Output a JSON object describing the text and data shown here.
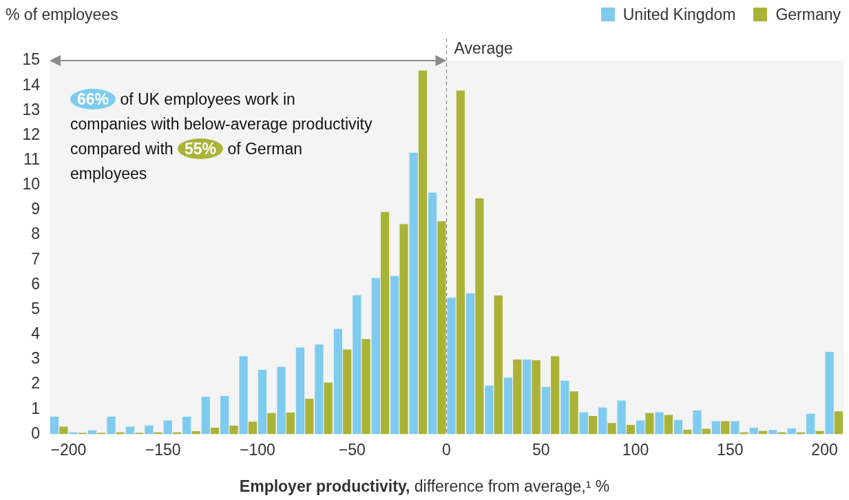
{
  "chart_data": {
    "type": "bar",
    "xlabel": "Employer productivity, difference from average,¹ %",
    "ylabel": "% of employees",
    "x": [
      -205,
      -195,
      -185,
      -175,
      -165,
      -155,
      -145,
      -135,
      -125,
      -115,
      -105,
      -95,
      -85,
      -75,
      -65,
      -55,
      -45,
      -35,
      -25,
      -15,
      -5,
      5,
      15,
      25,
      35,
      45,
      55,
      65,
      75,
      85,
      95,
      105,
      115,
      125,
      135,
      145,
      155,
      165,
      175,
      185,
      195,
      205
    ],
    "series": [
      {
        "name": "United Kingdom",
        "color": "#7ecbef",
        "values": [
          0.7,
          0.07,
          0.15,
          0.7,
          0.3,
          0.35,
          0.55,
          0.7,
          1.5,
          1.53,
          3.13,
          2.58,
          2.7,
          3.48,
          3.6,
          4.22,
          5.58,
          6.27,
          6.35,
          11.3,
          9.7,
          5.48,
          5.65,
          1.95,
          2.27,
          3.0,
          1.9,
          2.15,
          0.88,
          1.07,
          1.35,
          0.55,
          0.88,
          0.57,
          0.95,
          0.52,
          0.52,
          0.25,
          0.17,
          0.23,
          0.82,
          3.3
        ]
      },
      {
        "name": "Germany",
        "color": "#abb336",
        "values": [
          0.3,
          0.05,
          0.05,
          0.07,
          0.05,
          0.07,
          0.07,
          0.12,
          0.26,
          0.34,
          0.5,
          0.85,
          0.87,
          1.42,
          2.07,
          3.4,
          3.82,
          8.92,
          8.43,
          14.6,
          8.55,
          13.8,
          9.47,
          5.57,
          3.0,
          2.97,
          3.13,
          1.72,
          0.73,
          0.45,
          0.37,
          0.85,
          0.77,
          0.18,
          0.22,
          0.52,
          0.07,
          0.13,
          0.07,
          0.07,
          0.13,
          0.92
        ]
      }
    ],
    "xlim": [
      -210,
      210
    ],
    "xticks": [
      -200,
      -150,
      -100,
      -50,
      0,
      50,
      100,
      150,
      200
    ],
    "ylim": [
      0,
      15
    ],
    "yticks": [
      0,
      1,
      2,
      3,
      4,
      5,
      6,
      7,
      8,
      9,
      10,
      11,
      12,
      13,
      14,
      15
    ],
    "grid": false,
    "legend": "top right",
    "ref_lines": [
      {
        "axis": "x",
        "value": 0,
        "label": "Average",
        "color": "#888888",
        "line_style": "dashed"
      }
    ],
    "annotations": [
      "66% of UK employees work in companies with below-average productivity compared with 55% of German employees"
    ]
  }
}
